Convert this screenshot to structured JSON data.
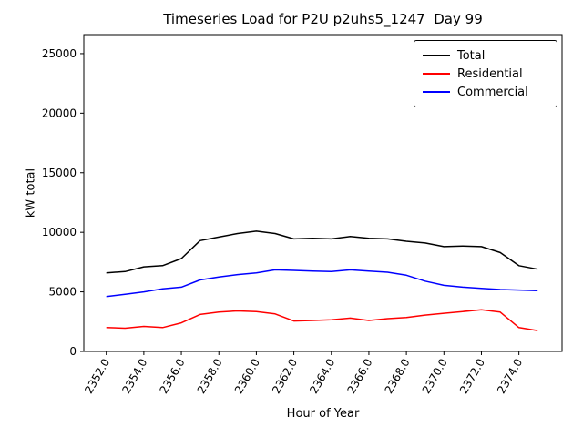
{
  "chart_data": {
    "type": "line",
    "title": "Timeseries Load for P2U p2uhs5_1247  Day 99",
    "xlabel": "Hour of Year",
    "ylabel": "kW total",
    "xlim": [
      2350.8,
      2376.3
    ],
    "ylim": [
      0,
      26600
    ],
    "grid": false,
    "legend_position": "upper right",
    "x": [
      2352,
      2353,
      2354,
      2355,
      2356,
      2357,
      2358,
      2359,
      2360,
      2361,
      2362,
      2363,
      2364,
      2365,
      2366,
      2367,
      2368,
      2369,
      2370,
      2371,
      2372,
      2373,
      2374,
      2375
    ],
    "x_ticks": {
      "values": [
        2352,
        2354,
        2356,
        2358,
        2360,
        2362,
        2364,
        2366,
        2368,
        2370,
        2372,
        2374
      ],
      "labels": [
        "2352.0",
        "2354.0",
        "2356.0",
        "2358.0",
        "2360.0",
        "2362.0",
        "2364.0",
        "2366.0",
        "2368.0",
        "2370.0",
        "2372.0",
        "2374.0"
      ]
    },
    "y_ticks": {
      "values": [
        0,
        5000,
        10000,
        15000,
        20000,
        25000
      ],
      "labels": [
        "0",
        "5000",
        "10000",
        "15000",
        "20000",
        "25000"
      ]
    },
    "series": [
      {
        "name": "Total",
        "color": "#000000",
        "values": [
          6600,
          6700,
          7100,
          7200,
          7800,
          9300,
          9600,
          9900,
          10100,
          9900,
          9450,
          9500,
          9450,
          9650,
          9500,
          9450,
          9250,
          9100,
          8800,
          8850,
          8800,
          8300,
          7200,
          6900
        ]
      },
      {
        "name": "Residential",
        "color": "#ff0000",
        "values": [
          2000,
          1950,
          2100,
          2000,
          2400,
          3100,
          3300,
          3400,
          3350,
          3150,
          2550,
          2600,
          2650,
          2800,
          2600,
          2750,
          2850,
          3050,
          3200,
          3350,
          3500,
          3300,
          2000,
          1750
        ]
      },
      {
        "name": "Commercial",
        "color": "#0000ff",
        "values": [
          4600,
          4800,
          5000,
          5250,
          5400,
          6000,
          6250,
          6450,
          6600,
          6850,
          6800,
          6750,
          6700,
          6850,
          6750,
          6650,
          6400,
          5900,
          5550,
          5400,
          5300,
          5200,
          5150,
          5100
        ]
      }
    ]
  }
}
